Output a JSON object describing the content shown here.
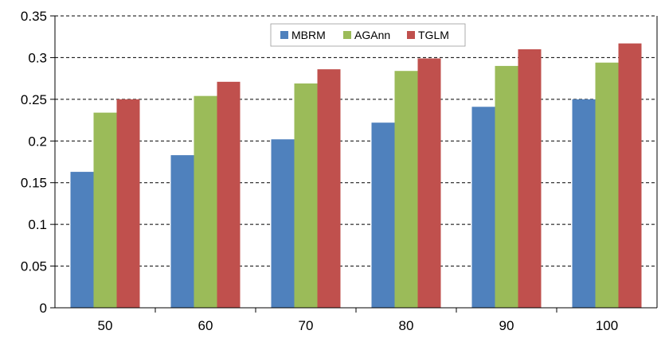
{
  "chart_data": {
    "type": "bar",
    "title": "",
    "xlabel": "",
    "ylabel": "",
    "categories": [
      "50",
      "60",
      "70",
      "80",
      "90",
      "100"
    ],
    "series": [
      {
        "name": "MBRM",
        "color": "#4F81BD",
        "values": [
          0.163,
          0.183,
          0.202,
          0.222,
          0.241,
          0.25
        ]
      },
      {
        "name": "AGAnn",
        "color": "#9BBB59",
        "values": [
          0.234,
          0.254,
          0.269,
          0.284,
          0.29,
          0.294
        ]
      },
      {
        "name": "TGLM",
        "color": "#C0504D",
        "values": [
          0.25,
          0.271,
          0.286,
          0.299,
          0.31,
          0.317
        ]
      }
    ],
    "ylim": [
      0,
      0.35
    ],
    "yticks": [
      "0",
      "0.05",
      "0.1",
      "0.15",
      "0.2",
      "0.25",
      "0.3",
      "0.35"
    ],
    "grid": "horizontal dashed",
    "legend": "top-center"
  }
}
